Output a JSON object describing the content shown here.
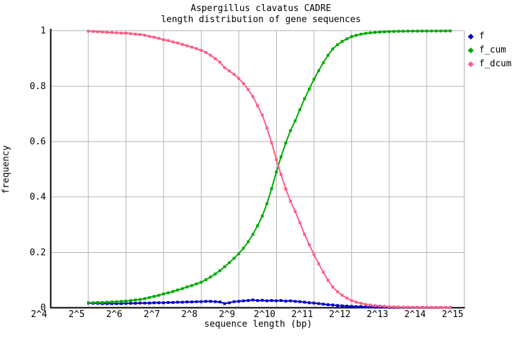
{
  "title_lines": [
    "Aspergillus clavatus CADRE",
    "length distribution of gene sequences"
  ],
  "chart_data": {
    "type": "line",
    "title": "Aspergillus clavatus CADRE length distribution of gene sequences",
    "xlabel": "sequence length (bp)",
    "ylabel": "frequency",
    "x_axis_scale": "log2",
    "x_tick_labels": [
      "2^4",
      "2^5",
      "2^6",
      "2^7",
      "2^8",
      "2^9",
      "2^10",
      "2^11",
      "2^12",
      "2^13",
      "2^14",
      "2^15"
    ],
    "x_tick_log2": [
      4,
      5,
      6,
      7,
      8,
      9,
      10,
      11,
      12,
      13,
      14,
      15
    ],
    "y_ticks": [
      0,
      0.2,
      0.4,
      0.6,
      0.8,
      1
    ],
    "y_tick_labels": [
      "0",
      "0.2",
      "0.4",
      "0.6",
      "0.8",
      "1"
    ],
    "xlim_log2": [
      4,
      15
    ],
    "ylim": [
      0,
      1
    ],
    "grid": true,
    "legend_position": "outside-top-right",
    "colors": {
      "background": "#ffffff",
      "axis": "#000000",
      "grid": "#b3b3b3",
      "text": "#000000"
    },
    "x_log2": [
      5,
      5.125,
      5.25,
      5.375,
      5.5,
      5.625,
      5.75,
      5.875,
      6,
      6.125,
      6.25,
      6.375,
      6.5,
      6.625,
      6.75,
      6.875,
      7,
      7.125,
      7.25,
      7.375,
      7.5,
      7.625,
      7.75,
      7.875,
      8,
      8.125,
      8.25,
      8.375,
      8.5,
      8.625,
      8.75,
      8.875,
      9,
      9.125,
      9.25,
      9.375,
      9.5,
      9.625,
      9.75,
      9.875,
      10,
      10.125,
      10.25,
      10.375,
      10.5,
      10.625,
      10.75,
      10.875,
      11,
      11.125,
      11.25,
      11.375,
      11.5,
      11.625,
      11.75,
      11.875,
      12,
      12.125,
      12.25,
      12.375,
      12.5,
      12.625,
      12.75,
      12.875,
      13,
      13.125,
      13.25,
      13.375,
      13.5,
      13.625,
      13.75,
      13.875,
      14,
      14.125,
      14.25,
      14.375,
      14.5,
      14.625
    ],
    "series": [
      {
        "name": "f",
        "color": "#0000cc",
        "values": [
          0.017,
          0.016,
          0.016,
          0.015,
          0.015,
          0.015,
          0.015,
          0.015,
          0.016,
          0.016,
          0.016,
          0.017,
          0.017,
          0.017,
          0.018,
          0.018,
          0.018,
          0.019,
          0.019,
          0.02,
          0.02,
          0.021,
          0.021,
          0.022,
          0.022,
          0.023,
          0.023,
          0.022,
          0.021,
          0.015,
          0.018,
          0.022,
          0.023,
          0.025,
          0.026,
          0.028,
          0.026,
          0.027,
          0.025,
          0.026,
          0.025,
          0.026,
          0.024,
          0.025,
          0.023,
          0.022,
          0.02,
          0.018,
          0.017,
          0.015,
          0.013,
          0.011,
          0.01,
          0.008,
          0.007,
          0.006,
          0.005,
          0.004,
          0.004,
          0.003,
          0.003,
          0.002,
          0.002,
          0.002,
          0.001,
          0.001,
          0.001,
          0.001,
          0.001,
          0.001,
          0.001,
          0.001,
          0.001,
          0.001,
          0.001,
          0.001,
          0.001,
          0.001
        ]
      },
      {
        "name": "f_cum",
        "color": "#00aa00",
        "values": [
          0.018,
          0.018,
          0.019,
          0.019,
          0.02,
          0.021,
          0.022,
          0.023,
          0.024,
          0.026,
          0.028,
          0.03,
          0.033,
          0.037,
          0.041,
          0.045,
          0.05,
          0.054,
          0.059,
          0.064,
          0.069,
          0.075,
          0.08,
          0.086,
          0.092,
          0.101,
          0.111,
          0.122,
          0.134,
          0.148,
          0.163,
          0.179,
          0.195,
          0.215,
          0.238,
          0.265,
          0.296,
          0.331,
          0.376,
          0.43,
          0.49,
          0.545,
          0.595,
          0.64,
          0.675,
          0.715,
          0.755,
          0.79,
          0.825,
          0.856,
          0.885,
          0.912,
          0.935,
          0.95,
          0.962,
          0.971,
          0.979,
          0.984,
          0.988,
          0.991,
          0.993,
          0.9945,
          0.9958,
          0.9968,
          0.9976,
          0.9981,
          0.9985,
          0.9988,
          0.999,
          0.9992,
          0.9993,
          0.9994,
          0.9995,
          0.9996,
          0.9997,
          0.9997,
          0.9998,
          0.9999
        ]
      },
      {
        "name": "f_dcum",
        "color": "#ff5c85",
        "values": [
          0.999,
          0.998,
          0.997,
          0.996,
          0.995,
          0.994,
          0.993,
          0.992,
          0.992,
          0.99,
          0.988,
          0.987,
          0.984,
          0.98,
          0.977,
          0.973,
          0.968,
          0.965,
          0.96,
          0.956,
          0.951,
          0.946,
          0.941,
          0.936,
          0.93,
          0.922,
          0.912,
          0.9,
          0.887,
          0.867,
          0.855,
          0.843,
          0.828,
          0.81,
          0.788,
          0.763,
          0.73,
          0.696,
          0.649,
          0.596,
          0.535,
          0.481,
          0.429,
          0.385,
          0.348,
          0.307,
          0.265,
          0.228,
          0.192,
          0.159,
          0.128,
          0.099,
          0.075,
          0.058,
          0.045,
          0.035,
          0.026,
          0.02,
          0.016,
          0.012,
          0.01,
          0.0075,
          0.0062,
          0.0052,
          0.0034,
          0.0029,
          0.0024,
          0.0022,
          0.002,
          0.0018,
          0.0017,
          0.0016,
          0.0015,
          0.0014,
          0.0013,
          0.0013,
          0.0012,
          0.0011
        ]
      }
    ]
  }
}
